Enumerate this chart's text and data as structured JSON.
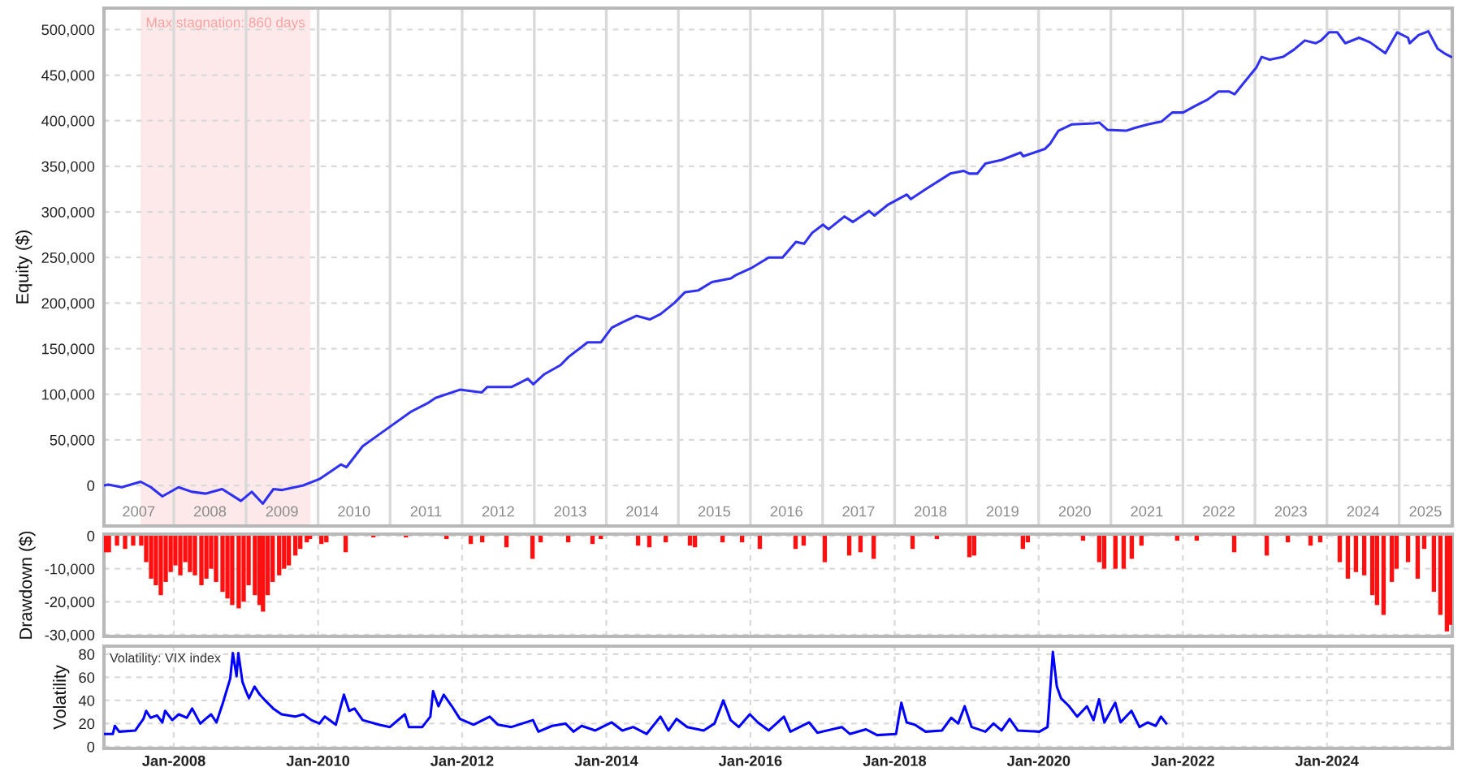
{
  "chart_data": [
    {
      "type": "line",
      "ylabel": "Equity ($)",
      "x": [
        "2007-01-12",
        "2007-02-03",
        "2007-04-12",
        "2007-07-17",
        "2007-09-07",
        "2007-11-04",
        "2008-01-25",
        "2008-04-01",
        "2008-06-11",
        "2008-09-02",
        "2008-12-06",
        "2009-01-30",
        "2009-03-27",
        "2009-05-20",
        "2009-06-30",
        "2009-10-18",
        "2010-01-08",
        "2010-04-27",
        "2010-05-25",
        "2010-08-15",
        "2010-12-03",
        "2011-04-18",
        "2011-07-09",
        "2011-08-19",
        "2011-12-21",
        "2012-04-10",
        "2012-05-08",
        "2012-09-09",
        "2012-11-29",
        "2012-12-27",
        "2013-02-21",
        "2013-05-14",
        "2013-06-24",
        "2013-09-28",
        "2013-12-05",
        "2014-01-29",
        "2014-03-25",
        "2014-06-02",
        "2014-08-09",
        "2014-10-03",
        "2014-12-11",
        "2015-02-04",
        "2015-04-13",
        "2015-06-20",
        "2015-09-24",
        "2015-10-22",
        "2016-01-11",
        "2016-04-03",
        "2016-06-12",
        "2016-08-19",
        "2016-09-29",
        "2016-11-09",
        "2017-01-03",
        "2017-01-31",
        "2017-04-22",
        "2017-06-03",
        "2017-08-24",
        "2017-09-21",
        "2017-11-29",
        "2018-03-04",
        "2018-03-24",
        "2018-06-08",
        "2018-10-10",
        "2018-12-17",
        "2019-01-14",
        "2019-02-24",
        "2019-04-06",
        "2019-06-28",
        "2019-10-01",
        "2019-10-15",
        "2020-02-01",
        "2020-02-29",
        "2020-04-10",
        "2020-06-18",
        "2020-10-06",
        "2020-11-03",
        "2020-12-14",
        "2021-03-19",
        "2021-04-30",
        "2021-07-07",
        "2021-09-14",
        "2021-11-08",
        "2022-01-02",
        "2022-03-11",
        "2022-05-05",
        "2022-06-30",
        "2022-08-24",
        "2022-09-20",
        "2022-10-31",
        "2023-01-07",
        "2023-02-04",
        "2023-03-17",
        "2023-05-24",
        "2023-07-18",
        "2023-09-11",
        "2023-11-05",
        "2023-12-02",
        "2024-01-12",
        "2024-02-22",
        "2024-04-03",
        "2024-06-12",
        "2024-08-06",
        "2024-10-23",
        "2024-12-22",
        "2025-02-15",
        "2025-02-23",
        "2025-04-10",
        "2025-05-29",
        "2025-07-15",
        "2025-08-25",
        "2025-09-22"
      ],
      "series": [
        {
          "color": "#3030f0",
          "values": [
            0,
            1000,
            -2000,
            4000,
            -2000,
            -12000,
            -2000,
            -7000,
            -9000,
            -4000,
            -17000,
            -7000,
            -20000,
            -4000,
            -5000,
            0,
            7000,
            23000,
            20000,
            43000,
            60000,
            81000,
            90000,
            96000,
            105000,
            102000,
            108000,
            108000,
            117000,
            111000,
            122000,
            132000,
            141000,
            157000,
            157000,
            173000,
            179000,
            186000,
            182000,
            188000,
            200000,
            212000,
            214000,
            223000,
            227000,
            231000,
            239000,
            250000,
            250000,
            267000,
            265000,
            277000,
            286000,
            281000,
            295000,
            289000,
            301000,
            296000,
            308000,
            319000,
            314000,
            325000,
            342000,
            345000,
            342000,
            342000,
            353000,
            357000,
            365000,
            361000,
            369000,
            375000,
            389000,
            396000,
            397000,
            398000,
            390000,
            389000,
            392000,
            396000,
            399000,
            409000,
            409000,
            417000,
            423000,
            432000,
            432000,
            429000,
            440000,
            458000,
            470000,
            467000,
            470000,
            478000,
            488000,
            485000,
            488000,
            497000,
            497000,
            485000,
            491000,
            486000,
            474000,
            497000,
            491000,
            485000,
            494000,
            498000,
            479000,
            473000,
            470000
          ]
        }
      ],
      "xlim": [
        "2007-01-12",
        "2025-09-27"
      ],
      "ylim": [
        -44500,
        523500
      ],
      "yticks": [
        0,
        {
          "value": 50000,
          "label": "50,000"
        },
        {
          "value": 100000,
          "label": "100,000"
        },
        {
          "value": 150000,
          "label": "150,000"
        },
        {
          "value": 200000,
          "label": "200,000"
        },
        {
          "value": 250000,
          "label": "250,000"
        },
        {
          "value": 300000,
          "label": "300,000"
        },
        {
          "value": 350000,
          "label": "350,000"
        },
        {
          "value": 400000,
          "label": "400,000"
        },
        {
          "value": 450000,
          "label": "450,000"
        },
        {
          "value": 500000,
          "label": "500,000"
        }
      ],
      "xticks": [
        {
          "value": "2008-01-01",
          "label": null
        },
        {
          "value": "2009-01-01",
          "label": null
        },
        {
          "value": "2010-01-01",
          "label": null
        },
        {
          "value": "2011-01-01",
          "label": null
        },
        {
          "value": "2012-01-01",
          "label": null
        },
        {
          "value": "2013-01-01",
          "label": null
        },
        {
          "value": "2014-01-01",
          "label": null
        },
        {
          "value": "2015-01-01",
          "label": null
        },
        {
          "value": "2016-01-01",
          "label": null
        },
        {
          "value": "2017-01-01",
          "label": null
        },
        {
          "value": "2018-01-01",
          "label": null
        },
        {
          "value": "2019-01-01",
          "label": null
        },
        {
          "value": "2020-01-01",
          "label": null
        },
        {
          "value": "2021-01-01",
          "label": null
        },
        {
          "value": "2022-01-01",
          "label": null
        },
        {
          "value": "2023-01-01",
          "label": null
        },
        {
          "value": "2024-01-01",
          "label": null
        },
        {
          "value": "2025-01-01",
          "label": null
        },
        {
          "value": "2007-07-07",
          "label": "2007"
        },
        {
          "value": "2008-07-02",
          "label": "2008"
        },
        {
          "value": "2009-07-02",
          "label": "2009"
        },
        {
          "value": "2010-07-02",
          "label": "2010"
        },
        {
          "value": "2011-07-02",
          "label": "2011"
        },
        {
          "value": "2012-07-02",
          "label": "2012"
        },
        {
          "value": "2013-07-02",
          "label": "2013"
        },
        {
          "value": "2014-07-02",
          "label": "2014"
        },
        {
          "value": "2015-07-02",
          "label": "2015"
        },
        {
          "value": "2016-07-02",
          "label": "2016"
        },
        {
          "value": "2017-07-02",
          "label": "2017"
        },
        {
          "value": "2018-07-02",
          "label": "2018"
        },
        {
          "value": "2019-07-02",
          "label": "2019"
        },
        {
          "value": "2020-07-02",
          "label": "2020"
        },
        {
          "value": "2021-07-02",
          "label": "2021"
        },
        {
          "value": "2022-07-02",
          "label": "2022"
        },
        {
          "value": "2023-07-02",
          "label": "2023"
        },
        {
          "value": "2024-07-02",
          "label": "2024"
        },
        {
          "value": "2025-05-14",
          "label": "2025"
        }
      ],
      "grid": true,
      "bands": [
        {
          "axis": "x",
          "from": "2007-07-17",
          "to": "2009-11-23",
          "label": "Max stagnation: 860 days",
          "color": "#fde9e9"
        }
      ]
    },
    {
      "type": "bar",
      "ylabel": "Drawdown ($)",
      "x": [
        "2007-01-20",
        "2007-02-06",
        "2007-03-19",
        "2007-04-29",
        "2007-06-09",
        "2007-07-20",
        "2007-08-14",
        "2007-09-08",
        "2007-10-02",
        "2007-10-27",
        "2007-11-21",
        "2007-12-16",
        "2008-01-09",
        "2008-02-03",
        "2008-02-28",
        "2008-03-23",
        "2008-04-17",
        "2008-05-20",
        "2008-06-14",
        "2008-07-08",
        "2008-08-02",
        "2008-09-04",
        "2008-09-29",
        "2008-10-23",
        "2008-11-25",
        "2008-12-20",
        "2009-01-14",
        "2009-02-15",
        "2009-03-11",
        "2009-03-28",
        "2009-04-21",
        "2009-05-16",
        "2009-06-18",
        "2009-07-13",
        "2009-08-06",
        "2009-09-08",
        "2009-10-03",
        "2009-11-05",
        "2009-11-21",
        "2010-01-18",
        "2010-02-12",
        "2010-05-21",
        "2010-10-08",
        "2011-03-22",
        "2011-10-14",
        "2012-02-14",
        "2012-04-12",
        "2012-08-13",
        "2012-12-23",
        "2013-02-02",
        "2013-06-22",
        "2013-10-23",
        "2013-12-04",
        "2014-06-11",
        "2014-08-07",
        "2014-10-29",
        "2015-03-01",
        "2015-03-26",
        "2015-08-13",
        "2015-11-20",
        "2016-02-18",
        "2016-08-17",
        "2016-09-27",
        "2017-01-12",
        "2017-05-16",
        "2017-07-12",
        "2017-09-17",
        "2018-04-02",
        "2018-08-03",
        "2019-01-15",
        "2019-02-08",
        "2019-10-13",
        "2019-11-07",
        "2020-08-13",
        "2020-11-03",
        "2020-11-28",
        "2021-01-24",
        "2021-03-07",
        "2021-04-17",
        "2021-06-05",
        "2021-12-03",
        "2022-03-12",
        "2022-09-18",
        "2023-03-02",
        "2023-06-17",
        "2023-10-10",
        "2023-11-28",
        "2024-03-06",
        "2024-04-16",
        "2024-05-27",
        "2024-07-08",
        "2024-08-18",
        "2024-09-11",
        "2024-10-14",
        "2024-11-25",
        "2024-12-19",
        "2025-02-15",
        "2025-04-05",
        "2025-05-08",
        "2025-06-26",
        "2025-07-29",
        "2025-08-31",
        "2025-09-16"
      ],
      "series": [
        {
          "color": "#ff1010",
          "values": [
            -5000,
            -5000,
            -3000,
            -4000,
            -3000,
            -3000,
            -8000,
            -13000,
            -15000,
            -18000,
            -14000,
            -11000,
            -9000,
            -12000,
            -8000,
            -11000,
            -12000,
            -15000,
            -13000,
            -10000,
            -14000,
            -17000,
            -19000,
            -21000,
            -22000,
            -20000,
            -15000,
            -18000,
            -21000,
            -23000,
            -18000,
            -14000,
            -12000,
            -10000,
            -9000,
            -6000,
            -4000,
            -2000,
            -1000,
            -2500,
            -2000,
            -5000,
            -500,
            -500,
            -1000,
            -2500,
            -2000,
            -3500,
            -7000,
            -2000,
            -2000,
            -2500,
            -1000,
            -3000,
            -3500,
            -2000,
            -3000,
            -3500,
            -2000,
            -2000,
            -4000,
            -4000,
            -3000,
            -8000,
            -6000,
            -5000,
            -7000,
            -4000,
            -1000,
            -6500,
            -6000,
            -4000,
            -2000,
            -1500,
            -8000,
            -10000,
            -10000,
            -10000,
            -7000,
            -3000,
            -1500,
            -1500,
            -5000,
            -6000,
            -2000,
            -3000,
            -2000,
            -8000,
            -13000,
            -11000,
            -12000,
            -18000,
            -21000,
            -24000,
            -14000,
            -10000,
            -8000,
            -13000,
            -4000,
            -17000,
            -24000,
            -29000,
            -27000
          ]
        }
      ],
      "xlim": [
        "2007-01-12",
        "2025-09-27"
      ],
      "ylim": [
        -30500,
        500
      ],
      "yticks": [
        0,
        {
          "value": -10000,
          "label": "-10,000"
        },
        {
          "value": -20000,
          "label": "-20,000"
        },
        {
          "value": -30000,
          "label": "-30,000"
        }
      ],
      "xticks": [
        {
          "value": "2008-01-01",
          "label": null
        },
        {
          "value": "2010-01-01",
          "label": null
        },
        {
          "value": "2012-01-01",
          "label": null
        },
        {
          "value": "2014-01-01",
          "label": null
        },
        {
          "value": "2016-01-01",
          "label": null
        },
        {
          "value": "2018-01-01",
          "label": null
        },
        {
          "value": "2020-01-01",
          "label": null
        },
        {
          "value": "2022-01-01",
          "label": null
        },
        {
          "value": "2024-01-01",
          "label": null
        }
      ],
      "tick_labels": "y",
      "grid": true
    },
    {
      "type": "line",
      "ylabel": "Volatility",
      "annotations": [
        "Volatility: VIX index"
      ],
      "x": [
        "2007-01-12",
        "2007-02-26",
        "2007-03-08",
        "2007-03-30",
        "2007-06-20",
        "2007-07-31",
        "2007-08-14",
        "2007-09-05",
        "2007-10-08",
        "2007-11-04",
        "2007-11-18",
        "2007-12-24",
        "2008-01-26",
        "2008-03-07",
        "2008-04-03",
        "2008-05-14",
        "2008-07-08",
        "2008-08-04",
        "2008-09-06",
        "2008-10-13",
        "2008-10-26",
        "2008-11-14",
        "2008-11-23",
        "2008-12-14",
        "2009-01-03",
        "2009-01-16",
        "2009-02-13",
        "2009-03-12",
        "2009-04-08",
        "2009-05-19",
        "2009-06-30",
        "2009-09-07",
        "2009-10-18",
        "2009-11-28",
        "2010-01-08",
        "2010-02-04",
        "2010-04-01",
        "2010-05-12",
        "2010-06-08",
        "2010-07-05",
        "2010-08-15",
        "2010-11-05",
        "2010-12-31",
        "2011-03-17",
        "2011-04-06",
        "2011-06-13",
        "2011-07-24",
        "2011-08-07",
        "2011-09-03",
        "2011-09-30",
        "2011-11-10",
        "2011-12-21",
        "2012-02-28",
        "2012-05-20",
        "2012-07-01",
        "2012-09-07",
        "2012-12-25",
        "2013-01-22",
        "2013-04-01",
        "2013-06-08",
        "2013-07-19",
        "2013-08-29",
        "2013-11-06",
        "2014-01-28",
        "2014-03-23",
        "2014-05-17",
        "2014-07-24",
        "2014-10-02",
        "2014-11-12",
        "2014-12-23",
        "2015-02-15",
        "2015-05-09",
        "2015-07-03",
        "2015-08-17",
        "2015-09-23",
        "2015-11-03",
        "2015-12-29",
        "2016-02-08",
        "2016-04-03",
        "2016-06-19",
        "2016-07-22",
        "2016-10-25",
        "2016-12-06",
        "2017-04-08",
        "2017-05-19",
        "2017-08-09",
        "2017-10-04",
        "2018-01-08",
        "2018-02-04",
        "2018-03-03",
        "2018-04-13",
        "2018-06-07",
        "2018-08-29",
        "2018-10-15",
        "2018-11-19",
        "2018-12-22",
        "2019-01-26",
        "2019-04-06",
        "2019-05-17",
        "2019-06-27",
        "2019-08-07",
        "2019-09-17",
        "2020-01-05",
        "2020-02-15",
        "2020-03-13",
        "2020-04-02",
        "2020-04-23",
        "2020-06-03",
        "2020-07-14",
        "2020-09-02",
        "2020-10-05",
        "2020-11-02",
        "2020-11-29",
        "2021-01-23",
        "2021-02-19",
        "2021-04-15",
        "2021-05-26",
        "2021-07-06",
        "2021-08-16",
        "2021-09-12",
        "2021-10-09"
      ],
      "series": [
        {
          "color": "#0000ff",
          "values": [
            11,
            11,
            18,
            13,
            14,
            24,
            31,
            25,
            27,
            21,
            31,
            23,
            28,
            25,
            33,
            20,
            28,
            21,
            38,
            59,
            81,
            61,
            81,
            56,
            47,
            42,
            52,
            45,
            40,
            33,
            28,
            26,
            28,
            23,
            20,
            26,
            19,
            45,
            31,
            33,
            23,
            19,
            17,
            28,
            17,
            17,
            26,
            48,
            35,
            45,
            35,
            24,
            19,
            26,
            19,
            17,
            23,
            13,
            18,
            20,
            13,
            18,
            14,
            21,
            14,
            17,
            11,
            26,
            14,
            24,
            17,
            14,
            20,
            40,
            23,
            17,
            28,
            21,
            14,
            26,
            13,
            21,
            12,
            17,
            11,
            15,
            10,
            11,
            38,
            21,
            19,
            13,
            14,
            25,
            20,
            35,
            17,
            13,
            20,
            14,
            24,
            14,
            13,
            17,
            82,
            52,
            42,
            35,
            26,
            35,
            23,
            41,
            21,
            38,
            21,
            31,
            17,
            21,
            18,
            26,
            20
          ]
        }
      ],
      "xlim": [
        "2007-01-12",
        "2025-09-27"
      ],
      "ylim": [
        -1.5,
        87
      ],
      "yticks": [
        0,
        20,
        40,
        60,
        80
      ],
      "xticks": [
        {
          "value": "2008-01-01",
          "label": "Jan-2008"
        },
        {
          "value": "2010-01-01",
          "label": "Jan-2010"
        },
        {
          "value": "2012-01-01",
          "label": "Jan-2012"
        },
        {
          "value": "2014-01-01",
          "label": "Jan-2014"
        },
        {
          "value": "2016-01-01",
          "label": "Jan-2016"
        },
        {
          "value": "2018-01-01",
          "label": "Jan-2018"
        },
        {
          "value": "2020-01-01",
          "label": "Jan-2020"
        },
        {
          "value": "2022-01-01",
          "label": "Jan-2022"
        },
        {
          "value": "2024-01-01",
          "label": "Jan-2024"
        }
      ],
      "grid": true
    }
  ]
}
